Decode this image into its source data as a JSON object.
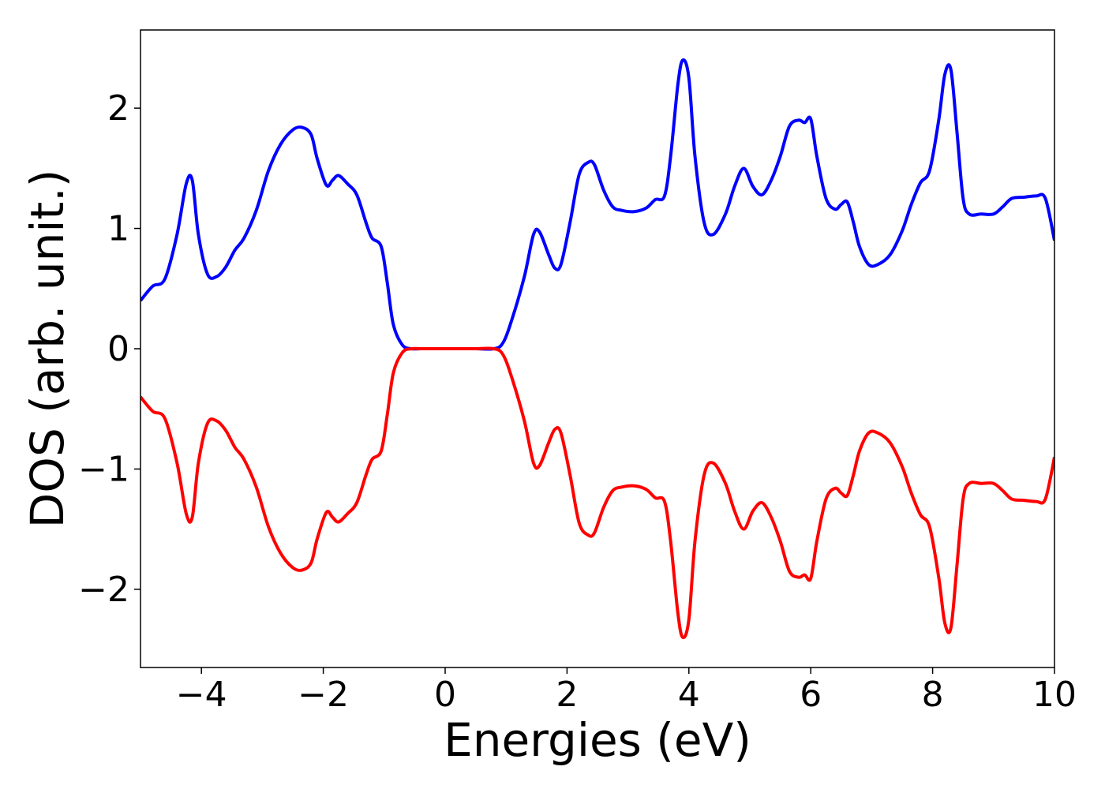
{
  "chart_data": {
    "type": "line",
    "xlabel": "Energies (eV)",
    "ylabel": "DOS (arb. unit.)",
    "xlim": [
      -5,
      10
    ],
    "ylim": [
      -2.65,
      2.65
    ],
    "grid": false,
    "legend": "none",
    "x_ticks": [
      -4,
      -2,
      0,
      2,
      4,
      6,
      8,
      10
    ],
    "x_tick_labels": [
      "−4",
      "−2",
      "0",
      "2",
      "4",
      "6",
      "8",
      "10"
    ],
    "y_ticks": [
      -2,
      -1,
      0,
      1,
      2
    ],
    "y_tick_labels": [
      "−2",
      "−1",
      "0",
      "1",
      "2"
    ],
    "series": [
      {
        "color": "#0000ff",
        "x": [
          -5.0,
          -4.8,
          -4.6,
          -4.4,
          -4.25,
          -4.15,
          -4.05,
          -3.9,
          -3.75,
          -3.6,
          -3.45,
          -3.3,
          -3.1,
          -2.9,
          -2.7,
          -2.5,
          -2.35,
          -2.2,
          -2.1,
          -1.95,
          -1.85,
          -1.75,
          -1.6,
          -1.45,
          -1.3,
          -1.2,
          -1.05,
          -0.95,
          -0.85,
          -0.7,
          -0.55,
          -0.4,
          0.0,
          0.5,
          0.8,
          0.95,
          1.1,
          1.3,
          1.45,
          1.55,
          1.7,
          1.8,
          1.9,
          2.05,
          2.2,
          2.35,
          2.45,
          2.6,
          2.75,
          2.9,
          3.1,
          3.3,
          3.45,
          3.6,
          3.7,
          3.82,
          3.9,
          4.0,
          4.1,
          4.25,
          4.4,
          4.6,
          4.75,
          4.9,
          5.05,
          5.2,
          5.35,
          5.5,
          5.65,
          5.8,
          5.9,
          6.0,
          6.1,
          6.25,
          6.4,
          6.5,
          6.6,
          6.7,
          6.8,
          6.95,
          7.1,
          7.3,
          7.5,
          7.65,
          7.8,
          7.95,
          8.1,
          8.2,
          8.3,
          8.4,
          8.5,
          8.6,
          8.8,
          9.0,
          9.15,
          9.3,
          9.5,
          9.7,
          9.85,
          10.0
        ],
        "y": [
          0.4,
          0.52,
          0.58,
          0.95,
          1.37,
          1.4,
          0.95,
          0.62,
          0.6,
          0.68,
          0.82,
          0.92,
          1.15,
          1.48,
          1.7,
          1.82,
          1.84,
          1.78,
          1.58,
          1.36,
          1.4,
          1.44,
          1.37,
          1.28,
          1.05,
          0.92,
          0.85,
          0.55,
          0.2,
          0.03,
          0.0,
          0.0,
          0.0,
          0.0,
          0.0,
          0.05,
          0.25,
          0.6,
          0.95,
          0.97,
          0.78,
          0.67,
          0.7,
          1.05,
          1.45,
          1.55,
          1.53,
          1.32,
          1.18,
          1.15,
          1.14,
          1.17,
          1.24,
          1.27,
          1.6,
          2.2,
          2.4,
          2.25,
          1.6,
          1.05,
          0.95,
          1.12,
          1.35,
          1.5,
          1.35,
          1.28,
          1.4,
          1.6,
          1.85,
          1.9,
          1.88,
          1.91,
          1.6,
          1.25,
          1.16,
          1.2,
          1.22,
          1.05,
          0.85,
          0.7,
          0.7,
          0.78,
          0.98,
          1.2,
          1.38,
          1.48,
          1.9,
          2.28,
          2.32,
          1.8,
          1.25,
          1.12,
          1.12,
          1.12,
          1.18,
          1.25,
          1.26,
          1.27,
          1.25,
          0.9
        ]
      },
      {
        "color": "#ff0000",
        "x": [
          -5.0,
          -4.8,
          -4.6,
          -4.4,
          -4.25,
          -4.15,
          -4.05,
          -3.9,
          -3.75,
          -3.6,
          -3.45,
          -3.3,
          -3.1,
          -2.9,
          -2.7,
          -2.5,
          -2.35,
          -2.2,
          -2.1,
          -1.95,
          -1.85,
          -1.75,
          -1.6,
          -1.45,
          -1.3,
          -1.2,
          -1.05,
          -0.95,
          -0.85,
          -0.7,
          -0.55,
          -0.4,
          0.0,
          0.5,
          0.8,
          0.95,
          1.1,
          1.3,
          1.45,
          1.55,
          1.7,
          1.8,
          1.9,
          2.05,
          2.2,
          2.35,
          2.45,
          2.6,
          2.75,
          2.9,
          3.1,
          3.3,
          3.45,
          3.6,
          3.7,
          3.82,
          3.9,
          4.0,
          4.1,
          4.25,
          4.4,
          4.6,
          4.75,
          4.9,
          5.05,
          5.2,
          5.35,
          5.5,
          5.65,
          5.8,
          5.9,
          6.0,
          6.1,
          6.25,
          6.4,
          6.5,
          6.6,
          6.7,
          6.8,
          6.95,
          7.1,
          7.3,
          7.5,
          7.65,
          7.8,
          7.95,
          8.1,
          8.2,
          8.3,
          8.4,
          8.5,
          8.6,
          8.8,
          9.0,
          9.15,
          9.3,
          9.5,
          9.7,
          9.85,
          10.0
        ],
        "y": [
          -0.4,
          -0.52,
          -0.58,
          -0.95,
          -1.37,
          -1.4,
          -0.95,
          -0.62,
          -0.6,
          -0.68,
          -0.82,
          -0.92,
          -1.15,
          -1.48,
          -1.7,
          -1.82,
          -1.84,
          -1.78,
          -1.58,
          -1.36,
          -1.4,
          -1.44,
          -1.37,
          -1.28,
          -1.05,
          -0.92,
          -0.85,
          -0.55,
          -0.2,
          -0.03,
          0.0,
          0.0,
          0.0,
          0.0,
          0.0,
          -0.05,
          -0.25,
          -0.6,
          -0.95,
          -0.97,
          -0.78,
          -0.67,
          -0.7,
          -1.05,
          -1.45,
          -1.55,
          -1.53,
          -1.32,
          -1.18,
          -1.15,
          -1.14,
          -1.17,
          -1.24,
          -1.27,
          -1.6,
          -2.2,
          -2.4,
          -2.25,
          -1.6,
          -1.05,
          -0.95,
          -1.12,
          -1.35,
          -1.5,
          -1.35,
          -1.28,
          -1.4,
          -1.6,
          -1.85,
          -1.9,
          -1.88,
          -1.91,
          -1.6,
          -1.25,
          -1.16,
          -1.2,
          -1.22,
          -1.05,
          -0.85,
          -0.7,
          -0.7,
          -0.78,
          -0.98,
          -1.2,
          -1.38,
          -1.48,
          -1.9,
          -2.28,
          -2.32,
          -1.8,
          -1.25,
          -1.12,
          -1.12,
          -1.12,
          -1.18,
          -1.25,
          -1.26,
          -1.27,
          -1.25,
          -0.9
        ]
      }
    ]
  }
}
